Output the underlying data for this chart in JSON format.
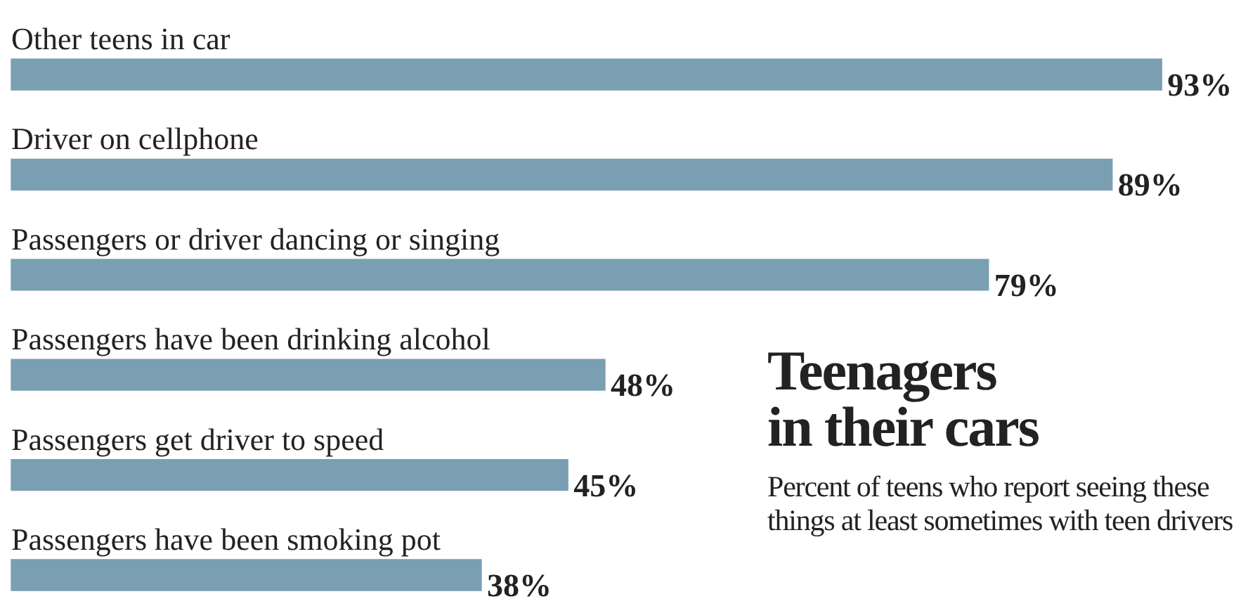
{
  "chart_data": {
    "type": "bar",
    "orientation": "horizontal",
    "title": "Teenagers in their cars",
    "subtitle": "Percent of teens who report seeing these things at least sometimes with teen drivers",
    "categories": [
      "Other teens in car",
      "Driver on cellphone",
      "Passengers or driver dancing or singing",
      "Passengers have been drinking alcohol",
      "Passengers get driver to speed",
      "Passengers have been smoking pot"
    ],
    "values": [
      93,
      89,
      79,
      48,
      45,
      38
    ],
    "value_labels": [
      "93%",
      "89%",
      "79%",
      "48%",
      "45%",
      "38%"
    ],
    "color": "#7a9fb3",
    "legend": false
  }
}
